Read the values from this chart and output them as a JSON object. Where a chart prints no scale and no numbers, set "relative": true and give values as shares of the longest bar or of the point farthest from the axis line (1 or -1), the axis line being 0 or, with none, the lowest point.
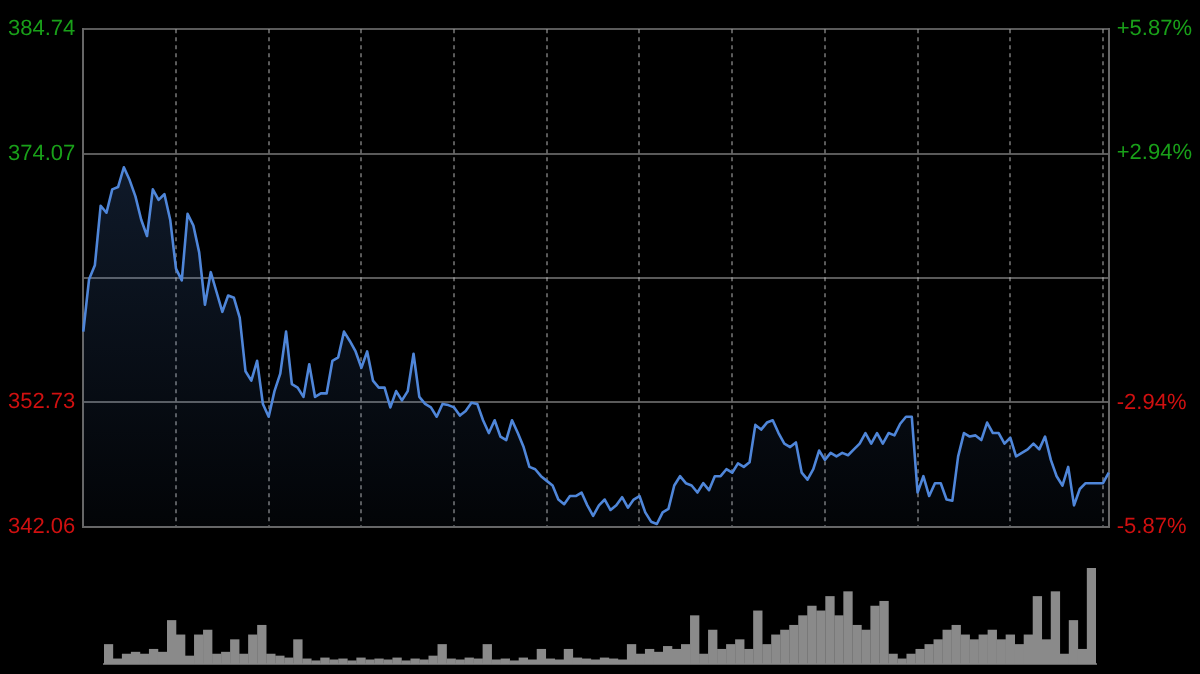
{
  "chart_data": [
    {
      "type": "area",
      "categories": [
        null,
        null,
        null,
        null,
        null,
        null,
        null,
        null,
        null,
        null,
        null,
        null,
        null,
        null,
        null,
        null,
        null,
        null,
        null,
        null,
        null,
        null,
        null,
        null,
        null,
        null,
        null,
        null,
        null,
        null,
        null,
        null,
        null,
        null,
        null,
        null,
        null,
        null,
        null,
        null,
        null,
        null,
        null,
        null,
        null,
        null,
        null,
        null,
        null,
        null,
        null,
        null,
        null,
        null,
        null,
        null,
        null,
        null,
        null,
        null,
        null,
        null,
        null,
        null,
        null,
        null,
        null,
        null,
        null,
        null,
        null,
        null,
        null,
        null,
        null,
        null,
        null,
        null,
        null,
        null,
        null,
        null,
        null,
        null,
        null,
        null,
        null,
        null,
        null,
        null,
        null,
        null,
        null,
        null,
        null,
        null,
        null,
        null,
        null,
        null,
        null,
        null,
        null,
        null,
        null,
        null,
        null,
        null,
        null,
        null,
        null,
        null,
        null,
        null,
        null,
        null,
        null,
        null,
        null,
        null,
        null,
        null,
        null,
        null,
        null,
        null,
        null,
        null,
        null,
        null,
        null,
        null,
        null,
        null,
        null,
        null,
        null,
        null,
        null,
        null,
        null,
        null,
        null,
        null,
        null,
        null,
        null,
        null,
        null,
        null,
        null,
        null,
        null,
        null,
        null,
        null,
        null,
        null,
        null,
        null,
        null,
        null,
        null,
        null,
        null,
        null,
        null,
        null,
        null,
        null,
        null,
        null,
        null,
        null,
        null,
        null,
        null,
        null
      ],
      "series": [
        {
          "color": "#4f86d9",
          "values": [
            358.8,
            363.3,
            364.5,
            369.6,
            369.0,
            371.0,
            371.2,
            372.9,
            371.8,
            370.4,
            368.4,
            367.0,
            371.0,
            370.1,
            370.6,
            368.4,
            364.2,
            363.2,
            368.9,
            367.9,
            365.6,
            361.1,
            363.9,
            362.2,
            360.5,
            361.9,
            361.7,
            360.0,
            355.4,
            354.6,
            356.3,
            352.6,
            351.5,
            353.7,
            355.2,
            358.8,
            354.3,
            354.0,
            353.2,
            356.0,
            353.2,
            353.5,
            353.5,
            356.3,
            356.6,
            358.8,
            358.0,
            357.1,
            355.7,
            357.1,
            354.6,
            354.0,
            354.0,
            352.3,
            353.7,
            352.9,
            353.7,
            356.9,
            353.2,
            352.6,
            352.3,
            351.5,
            352.6,
            352.5,
            352.3,
            351.6,
            352.0,
            352.7,
            352.6,
            351.2,
            350.1,
            351.2,
            349.8,
            349.5,
            351.2,
            350.1,
            348.9,
            347.2,
            347.0,
            346.4,
            346.0,
            345.6,
            344.4,
            344.0,
            344.7,
            344.7,
            345.0,
            343.9,
            343.0,
            343.9,
            344.4,
            343.5,
            343.9,
            344.6,
            343.7,
            344.4,
            344.7,
            343.3,
            342.5,
            342.3,
            343.3,
            343.6,
            345.6,
            346.4,
            345.8,
            345.6,
            345.0,
            345.8,
            345.2,
            346.4,
            346.4,
            347.0,
            346.7,
            347.5,
            347.2,
            347.6,
            350.8,
            350.4,
            351.0,
            351.2,
            350.1,
            349.2,
            348.9,
            349.3,
            346.7,
            346.1,
            347.0,
            348.6,
            347.8,
            348.4,
            348.1,
            348.4,
            348.2,
            348.7,
            349.2,
            350.1,
            349.2,
            350.1,
            349.2,
            350.1,
            349.9,
            350.9,
            351.5,
            351.5,
            345.0,
            346.4,
            344.7,
            345.8,
            345.8,
            344.4,
            344.3,
            348.1,
            350.1,
            349.8,
            349.9,
            349.5,
            351.0,
            350.1,
            350.1,
            349.2,
            349.7,
            348.1,
            348.4,
            348.7,
            349.2,
            348.7,
            349.8,
            347.8,
            346.4,
            345.6,
            347.2,
            343.9,
            345.3,
            345.8,
            345.8,
            345.8,
            345.8,
            346.7
          ]
        }
      ],
      "ylim": [
        342.06,
        384.74
      ],
      "yticks": [
        342.06,
        352.73,
        {
          "value": 363.4,
          "label": null
        },
        374.07,
        384.74
      ],
      "y2lim": [
        -5.87,
        5.87
      ],
      "y2ticks": [
        {
          "value": -5.87,
          "label": "-5.87%"
        },
        {
          "value": -2.94,
          "label": "-2.94%"
        },
        {
          "value": 0,
          "label": null
        },
        {
          "value": 2.94,
          "label": "+2.94%"
        },
        {
          "value": 5.87,
          "label": "+5.87%"
        }
      ],
      "grid": true,
      "tick_labels": "y"
    },
    {
      "type": "bar",
      "relative": true,
      "categories": [
        null,
        null,
        null,
        null,
        null,
        null,
        null,
        null,
        null,
        null,
        null,
        null,
        null,
        null,
        null,
        null,
        null,
        null,
        null,
        null,
        null,
        null,
        null,
        null,
        null,
        null,
        null,
        null,
        null,
        null,
        null,
        null,
        null,
        null,
        null,
        null,
        null,
        null,
        null,
        null,
        null,
        null,
        null,
        null,
        null,
        null,
        null,
        null,
        null,
        null,
        null,
        null,
        null,
        null,
        null,
        null,
        null,
        null,
        null,
        null,
        null,
        null,
        null,
        null,
        null,
        null,
        null,
        null,
        null,
        null,
        null,
        null,
        null,
        null,
        null,
        null,
        null,
        null,
        null,
        null,
        null,
        null,
        null,
        null,
        null,
        null,
        null,
        null,
        null,
        null,
        null,
        null,
        null,
        null,
        null,
        null,
        null,
        null,
        null,
        null,
        null,
        null,
        null,
        null,
        null,
        null,
        null,
        null,
        null,
        null
      ],
      "series": [
        {
          "color": "#8a8a8a",
          "values": [
            0.2,
            0.05,
            0.1,
            0.12,
            0.1,
            0.15,
            0.12,
            0.45,
            0.3,
            0.08,
            0.3,
            0.35,
            0.1,
            0.12,
            0.25,
            0.1,
            0.3,
            0.4,
            0.1,
            0.08,
            0.06,
            0.25,
            0.05,
            0.03,
            0.06,
            0.04,
            0.05,
            0.03,
            0.06,
            0.04,
            0.05,
            0.04,
            0.06,
            0.03,
            0.05,
            0.04,
            0.08,
            0.2,
            0.05,
            0.04,
            0.06,
            0.05,
            0.2,
            0.04,
            0.05,
            0.03,
            0.06,
            0.04,
            0.15,
            0.05,
            0.04,
            0.15,
            0.06,
            0.05,
            0.04,
            0.06,
            0.05,
            0.04,
            0.2,
            0.1,
            0.15,
            0.12,
            0.18,
            0.15,
            0.2,
            0.5,
            0.1,
            0.35,
            0.15,
            0.2,
            0.25,
            0.15,
            0.55,
            0.2,
            0.3,
            0.35,
            0.4,
            0.5,
            0.6,
            0.55,
            0.7,
            0.5,
            0.75,
            0.4,
            0.35,
            0.6,
            0.65,
            0.1,
            0.05,
            0.1,
            0.15,
            0.2,
            0.25,
            0.35,
            0.4,
            0.3,
            0.25,
            0.3,
            0.35,
            0.25,
            0.3,
            0.2,
            0.3,
            0.7,
            0.25,
            0.75,
            0.1,
            0.45,
            0.15,
            1
          ]
        }
      ],
      "tick_labels": false
    }
  ]
}
